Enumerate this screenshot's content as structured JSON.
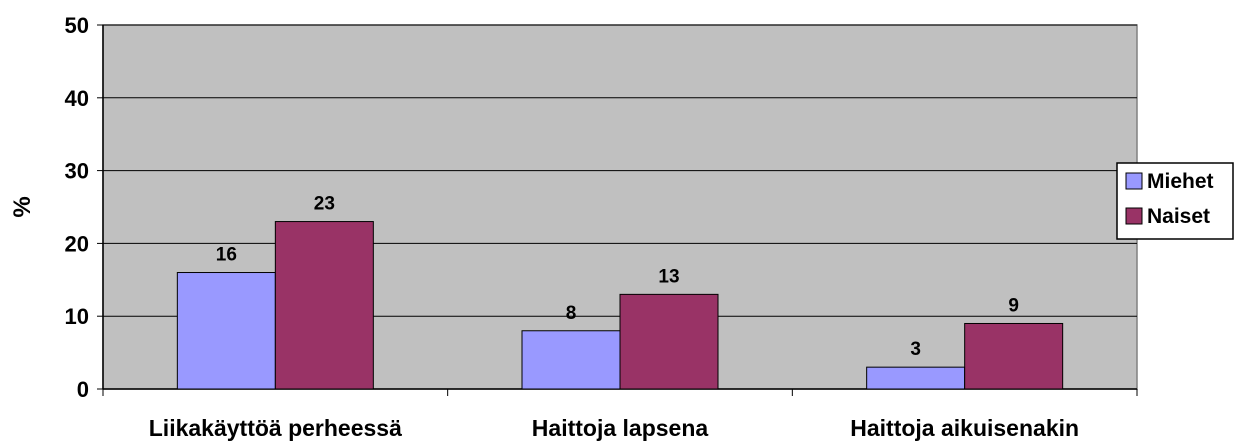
{
  "chart_data": {
    "type": "bar",
    "ylabel": "%",
    "ylim": [
      0,
      50
    ],
    "yticks": [
      0,
      10,
      20,
      30,
      40,
      50
    ],
    "categories": [
      "Liikakäyttöä perheessä",
      "Haittoja lapsena",
      "Haittoja aikuisenakin"
    ],
    "series": [
      {
        "name": "Miehet",
        "values": [
          16,
          8,
          3
        ],
        "color": "#9999ff"
      },
      {
        "name": "Naiset",
        "values": [
          23,
          13,
          9
        ],
        "color": "#993366"
      }
    ],
    "plot_background": "#c0c0c0",
    "grid": true,
    "legend": "right"
  }
}
